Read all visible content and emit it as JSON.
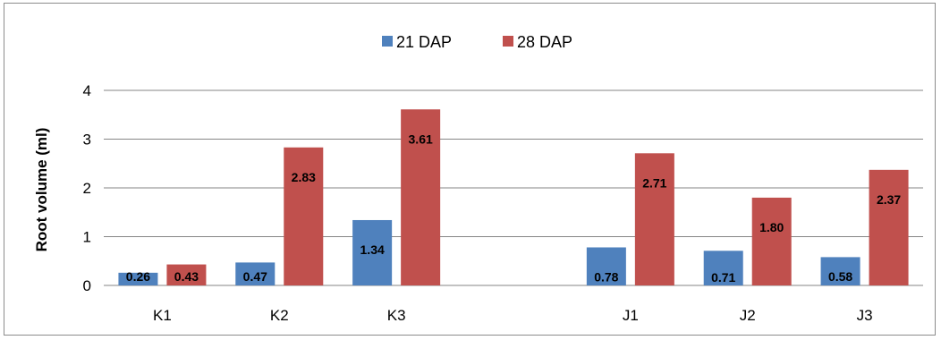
{
  "chart_data": {
    "type": "bar",
    "categories": [
      "K1",
      "K2",
      "K3",
      "",
      "J1",
      "J2",
      "J3"
    ],
    "series": [
      {
        "name": "21 DAP",
        "color": "#4f81bd",
        "values": [
          0.26,
          0.47,
          1.34,
          null,
          0.78,
          0.71,
          0.58
        ],
        "labels": [
          "0.26",
          "0.47",
          "1.34",
          "",
          "0.78",
          "0.71",
          "0.58"
        ]
      },
      {
        "name": "28 DAP",
        "color": "#c0504d",
        "values": [
          0.43,
          2.83,
          3.61,
          null,
          2.71,
          1.8,
          2.37
        ],
        "labels": [
          "0.43",
          "2.83",
          "3.61",
          "",
          "2.71",
          "1.80",
          "2.37"
        ]
      }
    ],
    "title": "",
    "xlabel": "",
    "ylabel": "Root volume (ml)",
    "ylim": [
      0,
      4
    ],
    "yticks": [
      0,
      1,
      2,
      3,
      4
    ],
    "grid": true,
    "legend_position": "top-center"
  }
}
